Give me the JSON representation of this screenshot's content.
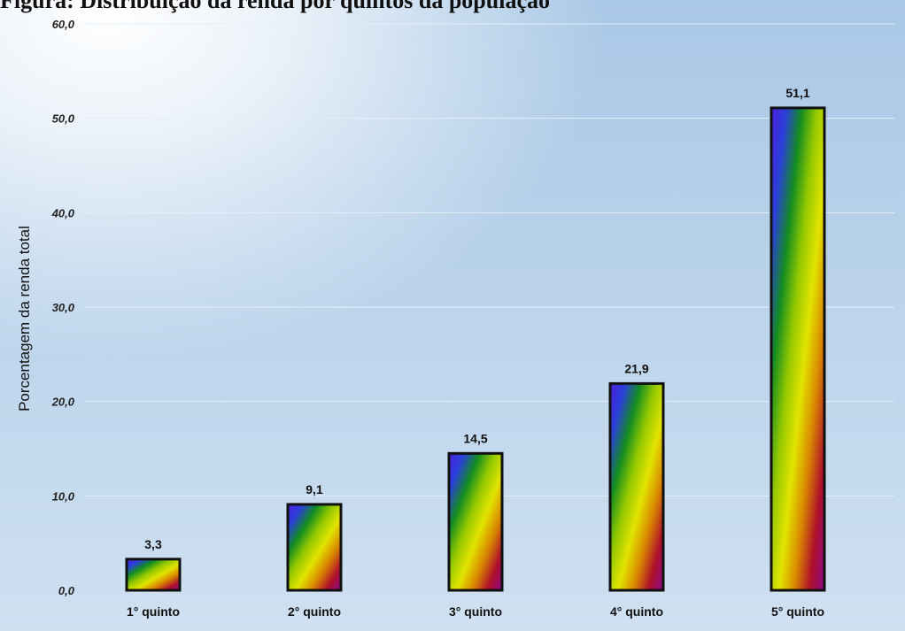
{
  "title": "Figura: Distribuição da renda por quintos da população",
  "chart_data": {
    "type": "bar",
    "title": "Figura: Distribuição da renda por quintos da população",
    "categories": [
      "1° quinto",
      "2° quinto",
      "3° quinto",
      "4° quinto",
      "5° quinto"
    ],
    "values": [
      3.3,
      9.1,
      14.5,
      21.9,
      51.1
    ],
    "value_labels": [
      "3,3",
      "9,1",
      "14,5",
      "21,9",
      "51,1"
    ],
    "xlabel": "",
    "ylabel": "Porcentagem da renda total",
    "ylim": [
      0,
      60
    ],
    "yticks": [
      0,
      10,
      20,
      30,
      40,
      50,
      60
    ],
    "ytick_labels": [
      "0,0",
      "10,0",
      "20,0",
      "30,0",
      "40,0",
      "50,0",
      "60,0"
    ],
    "grid": true,
    "legend": "none",
    "colors": {
      "background_top": "#a9c8e6",
      "background_bottom": "#cfe0f1",
      "bar_gradient": [
        "#4b1fe0",
        "#2a40d8",
        "#138d20",
        "#93c800",
        "#e2e400",
        "#d98a00",
        "#b0102a",
        "#8a0a8a"
      ],
      "bar_border": "#111111"
    }
  }
}
